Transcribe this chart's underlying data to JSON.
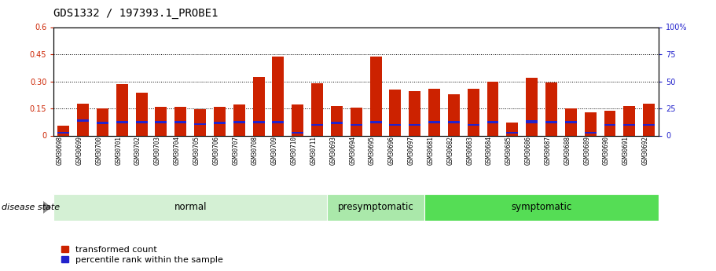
{
  "title": "GDS1332 / 197393.1_PROBE1",
  "samples": [
    "GSM30698",
    "GSM30699",
    "GSM30700",
    "GSM30701",
    "GSM30702",
    "GSM30703",
    "GSM30704",
    "GSM30705",
    "GSM30706",
    "GSM30707",
    "GSM30708",
    "GSM30709",
    "GSM30710",
    "GSM30711",
    "GSM30693",
    "GSM30694",
    "GSM30695",
    "GSM30696",
    "GSM30697",
    "GSM30681",
    "GSM30682",
    "GSM30683",
    "GSM30684",
    "GSM30685",
    "GSM30686",
    "GSM30687",
    "GSM30688",
    "GSM30689",
    "GSM30690",
    "GSM30691",
    "GSM30692"
  ],
  "red_vals": [
    0.055,
    0.175,
    0.148,
    0.285,
    0.235,
    0.16,
    0.16,
    0.145,
    0.158,
    0.17,
    0.325,
    0.435,
    0.17,
    0.29,
    0.162,
    0.155,
    0.435,
    0.255,
    0.245,
    0.26,
    0.23,
    0.26,
    0.3,
    0.07,
    0.32,
    0.295,
    0.15,
    0.13,
    0.135,
    0.165,
    0.175
  ],
  "blue_vals": [
    0.01,
    0.012,
    0.012,
    0.012,
    0.012,
    0.012,
    0.012,
    0.01,
    0.012,
    0.012,
    0.012,
    0.012,
    0.008,
    0.01,
    0.012,
    0.01,
    0.012,
    0.01,
    0.01,
    0.012,
    0.012,
    0.01,
    0.012,
    0.008,
    0.015,
    0.012,
    0.012,
    0.008,
    0.01,
    0.01,
    0.01
  ],
  "blue_positions": [
    0.01,
    0.075,
    0.065,
    0.068,
    0.068,
    0.068,
    0.068,
    0.058,
    0.065,
    0.068,
    0.068,
    0.068,
    0.01,
    0.055,
    0.065,
    0.055,
    0.068,
    0.055,
    0.055,
    0.068,
    0.068,
    0.055,
    0.068,
    0.01,
    0.068,
    0.068,
    0.068,
    0.01,
    0.055,
    0.055,
    0.055
  ],
  "groups": [
    {
      "label": "normal",
      "start": 0,
      "end": 14,
      "color": "#d4f0d4"
    },
    {
      "label": "presymptomatic",
      "start": 14,
      "end": 19,
      "color": "#aae8aa"
    },
    {
      "label": "symptomatic",
      "start": 19,
      "end": 31,
      "color": "#55dd55"
    }
  ],
  "ylim_left": [
    0,
    0.6
  ],
  "ylim_right": [
    0,
    100
  ],
  "yticks_left": [
    0,
    0.15,
    0.3,
    0.45,
    0.6
  ],
  "yticks_right": [
    0,
    25,
    50,
    75,
    100
  ],
  "ytick_labels_left": [
    "0",
    "0.15",
    "0.30",
    "0.45",
    "0.6"
  ],
  "ytick_labels_right": [
    "0",
    "25",
    "50",
    "75",
    "100%"
  ],
  "hlines": [
    0.15,
    0.3,
    0.45
  ],
  "red_color": "#cc2200",
  "blue_color": "#2222cc",
  "bar_width": 0.6,
  "background_color": "#ffffff",
  "plot_bg_color": "#ffffff",
  "title_fontsize": 10,
  "tick_fontsize": 7,
  "label_fontsize": 8,
  "disease_state_label": "disease state",
  "legend_items": [
    "transformed count",
    "percentile rank within the sample"
  ],
  "group_label_fontsize": 8.5,
  "xtick_fontsize": 5.5
}
